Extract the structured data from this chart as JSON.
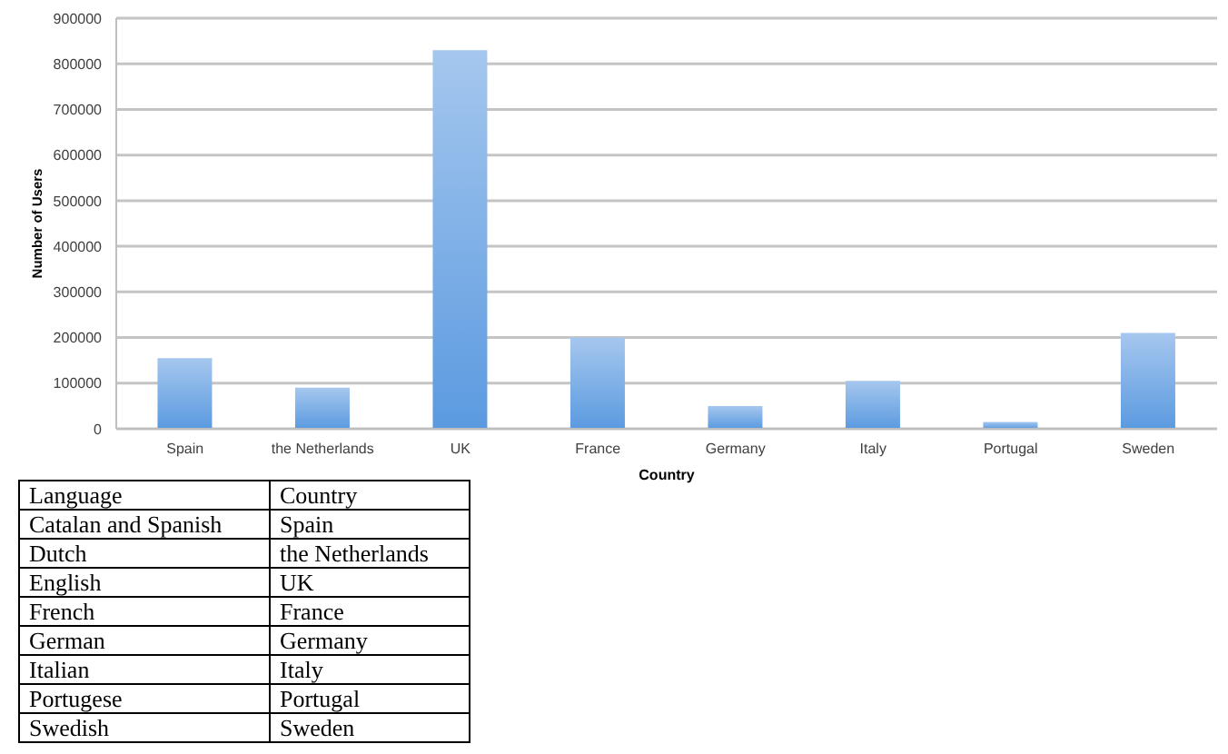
{
  "chart_data": [
    {
      "type": "bar",
      "xlabel": "Country",
      "ylabel": "Number of Users",
      "categories": [
        "Spain",
        "the Netherlands",
        "UK",
        "France",
        "Germany",
        "Italy",
        "Portugal",
        "Sweden"
      ],
      "values": [
        155000,
        90000,
        830000,
        200000,
        50000,
        105000,
        15000,
        210000
      ],
      "color": "#5b9ae0",
      "ylim": [
        0,
        900000
      ],
      "yticks": [
        0,
        100000,
        200000,
        300000,
        400000,
        500000,
        600000,
        700000,
        800000,
        900000
      ],
      "grid": "y"
    },
    {
      "type": "other",
      "categories": [
        "Language",
        "Country"
      ],
      "annotations": [
        "Catalan and Spanish",
        "Spain",
        "Dutch",
        "the Netherlands",
        "English",
        "UK",
        "French",
        "France",
        "German",
        "Germany",
        "Italian",
        "Italy",
        "Portugese",
        "Portugal",
        "Swedish",
        "Sweden"
      ]
    }
  ]
}
